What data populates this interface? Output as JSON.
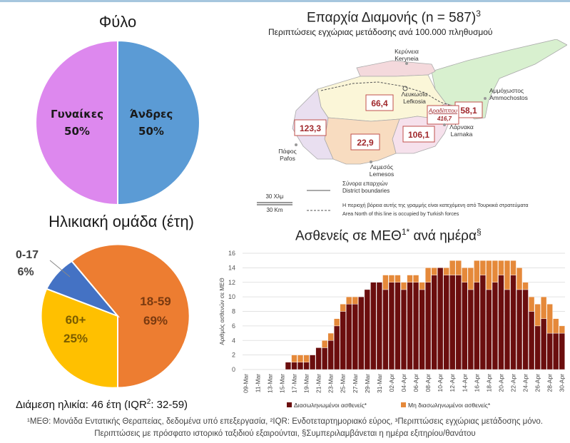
{
  "gender_title": "Φύλο",
  "age_title": "Ηλικιακή ομάδα (έτη)",
  "median_prefix": "Διάμεση ηλικία: 46 έτη (IQR",
  "median_sup": "2",
  "median_suffix": ": 32-59)",
  "map": {
    "title": "Επαρχία Διαμονής (n = 587)",
    "title_sup": "3",
    "subtitle": "Περιπτώσεις εγχώριας μετάδοσης ανά 100.000 πληθυσμού",
    "places": {
      "kyrenia_gr": "Κερύνεια",
      "kyrenia_en": "Keryneia",
      "nicosia_gr": "Λευκωσία",
      "nicosia_en": "Lefkosia",
      "famagusta_gr": "Αμμόχωστος",
      "famagusta_en": "Ammochostos",
      "paphos_gr": "Πάφος",
      "paphos_en": "Pafos",
      "larnaca_gr": "Λάρνακα",
      "larnaca_en": "Larnaka",
      "limassol_gr": "Λεμεσός",
      "limassol_en": "Lemesos",
      "aradippou": "Αραδίππου"
    },
    "values": {
      "nicosia": "66,4",
      "famagusta": "58,1",
      "paphos": "123,3",
      "limassol": "22,9",
      "larnaca": "106,1",
      "aradippou": "416,7"
    },
    "scale_km_gr": "30 Χλμ",
    "scale_km_en": "30 Km",
    "legend_boundary_gr": "Σύνορα επαρχιών",
    "legend_boundary_en": "District boundaries",
    "legend_north_gr": "Η περιοχή βόρεια αυτής της γραμμής είναι κατεχόμενη από Τουρκικά στρατεύματα",
    "legend_north_en": "Area North of this line is occupied by Turkish forces",
    "colors": {
      "kyrenia": "#f4d9dc",
      "nicosia": "#fbf6d8",
      "famagusta": "#d8f0cf",
      "paphos": "#e9dff0",
      "limassol": "#f8dcc0",
      "larnaca": "#f6e1ec",
      "sea": "#ffffff",
      "label": "#a0282c"
    }
  },
  "icu_title": "Ασθενείς σε ΜΕΘ",
  "icu_title_sup1": "1*",
  "icu_title_mid": " ανά ημέρα",
  "icu_title_sup2": "§",
  "footnote_line1": "¹ΜΕΘ: Μονάδα Εντατικής Θεραπείας, δεδομένα υπό επεξεργασία, ²IQR: Ενδοτεταρτημοριακό εύρος, ³Περιπτώσεις εγχώριας μετάδοσης μόνο.",
  "footnote_line2": "Περιπτώσεις με πρόσφατο ιστορικό ταξιδιού εξαιρούνται, §Συμπεριλαμβάνεται η ημέρα εξιτηρίου/θανάτου",
  "chart_data": [
    {
      "type": "pie",
      "title": "Φύλο",
      "labels": [
        "Άνδρες",
        "Γυναίκες"
      ],
      "values": [
        50,
        50
      ],
      "value_labels": [
        "50%",
        "50%"
      ],
      "colors": [
        "#5b9bd5",
        "#dd88ee"
      ]
    },
    {
      "type": "pie",
      "title": "Ηλικιακή ομάδα (έτη)",
      "labels": [
        "18-59",
        "60+",
        "0-17"
      ],
      "values": [
        69,
        25,
        6
      ],
      "value_labels": [
        "69%",
        "25%",
        "6%"
      ],
      "colors": [
        "#ed7d31",
        "#ffc000",
        "#4472c4"
      ]
    },
    {
      "type": "bar",
      "stacked": true,
      "title": "Ασθενείς σε ΜΕΘ¹* ανά ημέρα§",
      "ylabel": "Αριθμός ασθενών σε ΜΕΘ",
      "ylim": [
        0,
        16
      ],
      "yticks": [
        0,
        2,
        4,
        6,
        8,
        10,
        12,
        14,
        16
      ],
      "grid": true,
      "legend_position": "bottom",
      "tick_labels": [
        "09-Mar",
        "11-Mar",
        "13-Mar",
        "15-Mar",
        "17-Mar",
        "19-Mar",
        "21-Mar",
        "23-Mar",
        "25-Mar",
        "27-Mar",
        "29-Mar",
        "31-Mar",
        "02-Apr",
        "04-Apr",
        "06-Apr",
        "08-Apr",
        "10-Apr",
        "12-Apr",
        "14-Apr",
        "16-Apr",
        "18-Apr",
        "20-Apr",
        "22-Apr",
        "24-Apr",
        "26-Apr",
        "28-Apr",
        "30-Apr"
      ],
      "categories": [
        "09-Mar",
        "10-Mar",
        "11-Mar",
        "12-Mar",
        "13-Mar",
        "14-Mar",
        "15-Mar",
        "16-Mar",
        "17-Mar",
        "18-Mar",
        "19-Mar",
        "20-Mar",
        "21-Mar",
        "22-Mar",
        "23-Mar",
        "24-Mar",
        "25-Mar",
        "26-Mar",
        "27-Mar",
        "28-Mar",
        "29-Mar",
        "30-Mar",
        "31-Mar",
        "01-Apr",
        "02-Apr",
        "03-Apr",
        "04-Apr",
        "05-Apr",
        "06-Apr",
        "07-Apr",
        "08-Apr",
        "09-Apr",
        "10-Apr",
        "11-Apr",
        "12-Apr",
        "13-Apr",
        "14-Apr",
        "15-Apr",
        "16-Apr",
        "17-Apr",
        "18-Apr",
        "19-Apr",
        "20-Apr",
        "21-Apr",
        "22-Apr",
        "23-Apr",
        "24-Apr",
        "25-Apr",
        "26-Apr",
        "27-Apr",
        "28-Apr",
        "29-Apr",
        "30-Apr"
      ],
      "series": [
        {
          "name": "Διασωληνωμένοι ασθενείς*",
          "color": "#6b0e0e",
          "values": [
            0,
            0,
            0,
            0,
            0,
            0,
            0,
            1,
            1,
            1,
            1,
            2,
            3,
            3,
            4,
            6,
            8,
            9,
            9,
            10,
            11,
            12,
            12,
            11,
            12,
            12,
            11,
            12,
            12,
            11,
            12,
            13,
            14,
            13,
            13,
            13,
            12,
            11,
            12,
            13,
            11,
            12,
            13,
            11,
            13,
            11,
            11,
            8,
            6,
            7,
            5,
            5,
            5
          ]
        },
        {
          "name": "Μη διασωληνωμένοι ασθενείς*",
          "color": "#e5893a",
          "values": [
            0,
            0,
            0,
            0,
            0,
            0,
            0,
            0,
            1,
            1,
            1,
            0,
            0,
            1,
            1,
            1,
            1,
            1,
            1,
            0,
            0,
            0,
            0,
            2,
            1,
            1,
            1,
            1,
            1,
            1,
            2,
            1,
            0,
            1,
            2,
            2,
            2,
            3,
            3,
            2,
            4,
            3,
            2,
            4,
            2,
            3,
            1,
            2,
            3,
            3,
            4,
            2,
            1
          ]
        }
      ]
    }
  ]
}
